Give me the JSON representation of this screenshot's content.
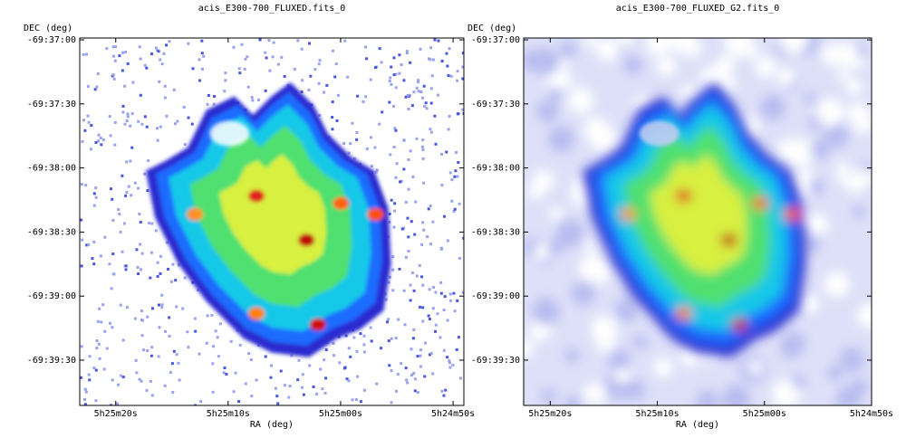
{
  "chart_data": [
    {
      "type": "image",
      "title": "acis_E300-700_FLUXED.fits_0",
      "x_label": "RA (deg)",
      "y_label": "DEC (deg)",
      "xlim": [
        81.34667,
        81.20433
      ],
      "ylim": [
        -69.66422,
        -69.61643
      ],
      "xticks": [
        {
          "value": 81.33333,
          "label": "5h25m20s"
        },
        {
          "value": 81.29167,
          "label": "5h25m10s"
        },
        {
          "value": 81.25,
          "label": "5h25m00s"
        },
        {
          "value": 81.20833,
          "label": "5h24m50s"
        }
      ],
      "yticks": [
        {
          "value": -69.61667,
          "label": "-69:37:00"
        },
        {
          "value": -69.625,
          "label": "-69:37:30"
        },
        {
          "value": -69.63333,
          "label": "-69:38:00"
        },
        {
          "value": -69.64167,
          "label": "-69:38:30"
        },
        {
          "value": -69.65,
          "label": "-69:39:00"
        },
        {
          "value": -69.65833,
          "label": "-69:39:30"
        }
      ]
    },
    {
      "type": "image",
      "title": "acis_E300-700_FLUXED_G2.fits_0",
      "x_label": "RA (deg)",
      "y_label": "DEC (deg)",
      "xlim": [
        81.34366,
        81.20833
      ],
      "ylim": [
        -69.66422,
        -69.61643
      ],
      "xticks": [
        {
          "value": 81.33333,
          "label": "5h25m20s"
        },
        {
          "value": 81.29167,
          "label": "5h25m10s"
        },
        {
          "value": 81.25,
          "label": "5h25m00s"
        },
        {
          "value": 81.20833,
          "label": "5h24m50s"
        }
      ],
      "yticks": [
        {
          "value": -69.61667,
          "label": "-69:37:00"
        },
        {
          "value": -69.625,
          "label": "-69:37:30"
        },
        {
          "value": -69.63333,
          "label": "-69:38:00"
        },
        {
          "value": -69.64167,
          "label": "-69:38:30"
        },
        {
          "value": -69.65,
          "label": "-69:39:00"
        },
        {
          "value": -69.65833,
          "label": "-69:39:30"
        }
      ]
    }
  ]
}
